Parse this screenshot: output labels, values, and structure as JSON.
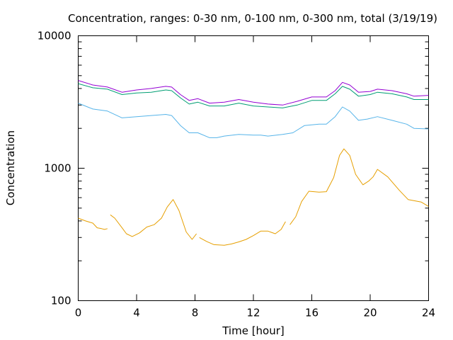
{
  "chart_data": {
    "type": "line",
    "title": "Concentration, ranges: 0-30 nm, 0-100 nm, 0-300 nm, total (3/19/19)",
    "xlabel": "Time [hour]",
    "ylabel": "Concentration",
    "xlim": [
      0,
      24
    ],
    "ylim": [
      100,
      10000
    ],
    "yscale": "log",
    "x_ticks": [
      0,
      4,
      8,
      12,
      16,
      20,
      24
    ],
    "x_tick_labels": [
      "0",
      "4",
      "8",
      "12",
      "16",
      "20",
      "24"
    ],
    "y_tick_labels": [
      "100",
      "1000",
      "10000"
    ],
    "y_major_ticks": [
      100,
      1000,
      10000
    ],
    "grid": false,
    "legend": "none",
    "series": [
      {
        "color": "#e69f00",
        "segments": [
          [
            [
              0,
              420
            ],
            [
              0.5,
              400
            ],
            [
              1,
              385
            ],
            [
              1.3,
              355
            ],
            [
              1.6,
              350
            ],
            [
              1.8,
              345
            ],
            [
              2.0,
              350
            ]
          ],
          [
            [
              2.2,
              445
            ],
            [
              2.5,
              420
            ],
            [
              3,
              355
            ],
            [
              3.3,
              320
            ],
            [
              3.7,
              305
            ],
            [
              4.2,
              325
            ],
            [
              4.7,
              360
            ],
            [
              5.2,
              375
            ],
            [
              5.7,
              420
            ],
            [
              6.1,
              510
            ],
            [
              6.5,
              580
            ],
            [
              6.9,
              480
            ],
            [
              7.4,
              330
            ],
            [
              7.8,
              290
            ],
            [
              8.1,
              320
            ]
          ],
          [
            [
              8.3,
              300
            ],
            [
              8.8,
              280
            ],
            [
              9.3,
              265
            ],
            [
              10,
              262
            ],
            [
              10.5,
              268
            ],
            [
              11,
              278
            ],
            [
              11.5,
              290
            ],
            [
              12,
              310
            ],
            [
              12.5,
              335
            ],
            [
              13,
              335
            ],
            [
              13.5,
              320
            ],
            [
              13.9,
              345
            ],
            [
              14.2,
              395
            ]
          ],
          [
            [
              14.5,
              375
            ],
            [
              14.9,
              430
            ],
            [
              15.3,
              560
            ],
            [
              15.8,
              670
            ],
            [
              16.5,
              660
            ],
            [
              17,
              665
            ],
            [
              17.5,
              850
            ],
            [
              17.9,
              1250
            ],
            [
              18.2,
              1400
            ],
            [
              18.6,
              1250
            ],
            [
              19.0,
              900
            ],
            [
              19.5,
              750
            ],
            [
              19.9,
              800
            ],
            [
              20.2,
              860
            ],
            [
              20.5,
              980
            ],
            [
              21.2,
              860
            ],
            [
              22,
              680
            ],
            [
              22.6,
              580
            ],
            [
              23.5,
              555
            ],
            [
              24,
              515
            ]
          ]
        ]
      },
      {
        "color": "#56b4e9",
        "segments": [
          [
            [
              0,
              3100
            ],
            [
              1,
              2800
            ],
            [
              2,
              2700
            ],
            [
              3,
              2400
            ],
            [
              4,
              2450
            ],
            [
              5,
              2500
            ],
            [
              6,
              2550
            ],
            [
              6.4,
              2500
            ],
            [
              7,
              2100
            ],
            [
              7.6,
              1850
            ],
            [
              8.2,
              1850
            ],
            [
              9,
              1700
            ],
            [
              9.5,
              1700
            ],
            [
              10,
              1750
            ],
            [
              11,
              1800
            ],
            [
              12,
              1780
            ],
            [
              12.5,
              1780
            ],
            [
              13,
              1750
            ],
            [
              14,
              1800
            ],
            [
              14.7,
              1850
            ],
            [
              15.5,
              2100
            ],
            [
              16.5,
              2150
            ],
            [
              17,
              2150
            ],
            [
              17.6,
              2450
            ],
            [
              18.1,
              2900
            ],
            [
              18.6,
              2700
            ],
            [
              19.2,
              2300
            ],
            [
              19.8,
              2350
            ],
            [
              20.5,
              2450
            ],
            [
              21.5,
              2300
            ],
            [
              22.5,
              2150
            ],
            [
              23,
              2000
            ],
            [
              24,
              1980
            ]
          ]
        ]
      },
      {
        "color": "#009e73",
        "segments": [
          [
            [
              0,
              4350
            ],
            [
              1,
              4050
            ],
            [
              2,
              3950
            ],
            [
              3,
              3600
            ],
            [
              4,
              3700
            ],
            [
              5,
              3750
            ],
            [
              6,
              3900
            ],
            [
              6.4,
              3850
            ],
            [
              7,
              3400
            ],
            [
              7.6,
              3050
            ],
            [
              8.2,
              3150
            ],
            [
              9,
              2950
            ],
            [
              10,
              2950
            ],
            [
              11,
              3100
            ],
            [
              12,
              2950
            ],
            [
              13,
              2900
            ],
            [
              14,
              2850
            ],
            [
              15,
              3000
            ],
            [
              16,
              3250
            ],
            [
              17,
              3250
            ],
            [
              17.6,
              3650
            ],
            [
              18.1,
              4150
            ],
            [
              18.6,
              3950
            ],
            [
              19.2,
              3500
            ],
            [
              20,
              3600
            ],
            [
              20.5,
              3750
            ],
            [
              21.5,
              3650
            ],
            [
              22.5,
              3450
            ],
            [
              23,
              3300
            ],
            [
              24,
              3300
            ]
          ]
        ]
      },
      {
        "color": "#9400d3",
        "segments": [
          [
            [
              0,
              4600
            ],
            [
              1,
              4250
            ],
            [
              2,
              4100
            ],
            [
              3,
              3750
            ],
            [
              4,
              3900
            ],
            [
              5,
              4000
            ],
            [
              6,
              4150
            ],
            [
              6.4,
              4100
            ],
            [
              7,
              3600
            ],
            [
              7.6,
              3250
            ],
            [
              8.2,
              3350
            ],
            [
              9,
              3100
            ],
            [
              10,
              3150
            ],
            [
              11,
              3300
            ],
            [
              12,
              3150
            ],
            [
              13,
              3050
            ],
            [
              14,
              3000
            ],
            [
              15,
              3200
            ],
            [
              16,
              3450
            ],
            [
              17,
              3450
            ],
            [
              17.6,
              3850
            ],
            [
              18.1,
              4450
            ],
            [
              18.6,
              4250
            ],
            [
              19.2,
              3750
            ],
            [
              20,
              3800
            ],
            [
              20.5,
              3950
            ],
            [
              21.5,
              3850
            ],
            [
              22.5,
              3650
            ],
            [
              23,
              3500
            ],
            [
              24,
              3550
            ]
          ]
        ]
      }
    ]
  }
}
